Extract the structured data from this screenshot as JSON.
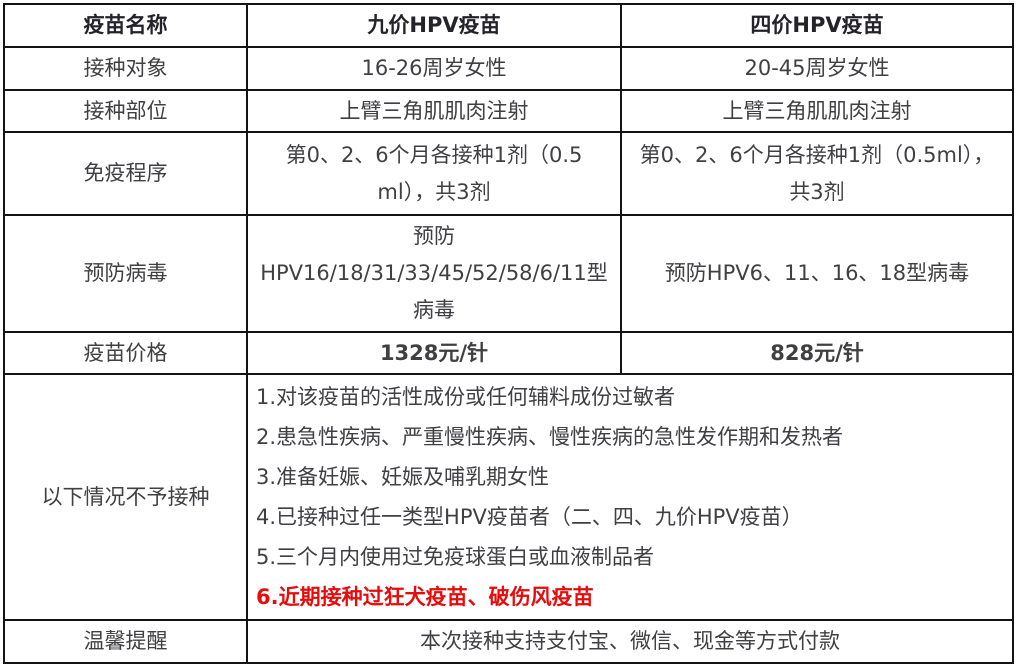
{
  "table": {
    "header": {
      "name_col": "疫苗名称",
      "nine_col": "九价HPV疫苗",
      "four_col": "四价HPV疫苗"
    },
    "rows": {
      "target": {
        "label": "接种对象",
        "nine": "16-26周岁女性",
        "four": "20-45周岁女性"
      },
      "site": {
        "label": "接种部位",
        "nine": "上臂三角肌肌肉注射",
        "four": "上臂三角肌肌肉注射"
      },
      "program": {
        "label": "免疫程序",
        "nine": "第0、2、6个月各接种1剂（0.5 ml），共3剂",
        "four": "第0、2、6个月各接种1剂（0.5ml），共3剂"
      },
      "virus": {
        "label": "预防病毒",
        "nine": "预防HPV16/18/31/33/45/52/58/6/11型病毒",
        "four": "预防HPV6、11、16、18型病毒"
      },
      "price": {
        "label": "疫苗价格",
        "nine": "1328元/针",
        "four": "828元/针"
      }
    },
    "contraindications": {
      "label": "以下情况不予接种",
      "items": [
        "1.对该疫苗的活性成份或任何辅料成份过敏者",
        "2.患急性疾病、严重慢性疾病、慢性疾病的急性发作期和发热者",
        "3.准备妊娠、妊娠及哺乳期女性",
        "4.已接种过任一类型HPV疫苗者（二、四、九价HPV疫苗）",
        "5.三个月内使用过免疫球蛋白或血液制品者",
        "6.近期接种过狂犬疫苗、破伤风疫苗"
      ]
    },
    "reminder": {
      "label": "温馨提醒",
      "text": "本次接种支持支付宝、微信、现金等方式付款"
    }
  },
  "colors": {
    "accent_red": "#e60c0c",
    "body_text": "#3f3f44",
    "header_text": "#232329",
    "border": "#141414",
    "background": "#ffffff"
  }
}
